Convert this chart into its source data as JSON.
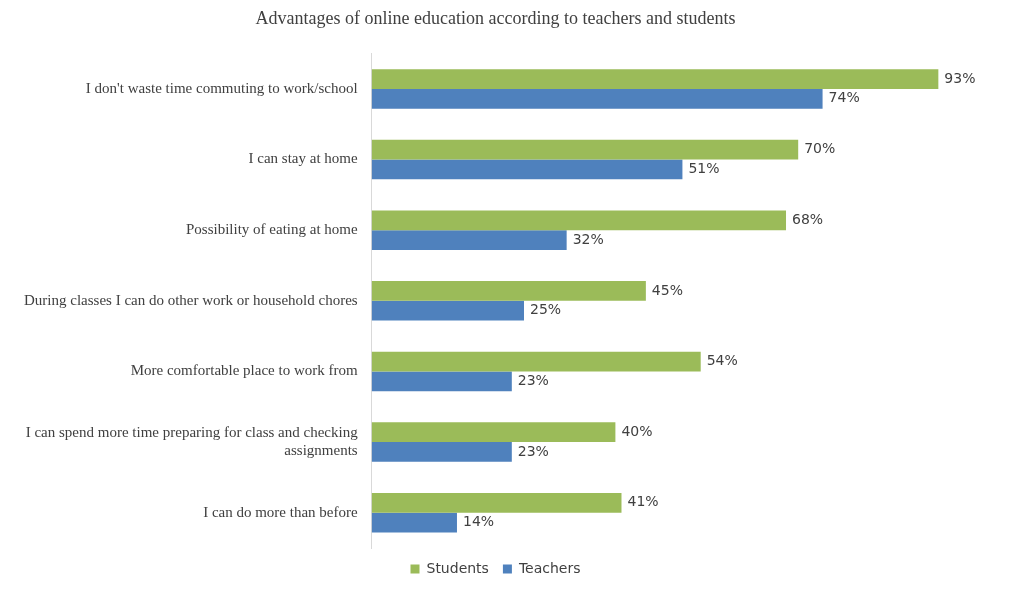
{
  "chart_data": {
    "type": "bar",
    "orientation": "horizontal",
    "title": "Advantages of online education according to teachers and students",
    "categories": [
      "I don't waste time commuting to work/school",
      "I can stay at home",
      "Possibility of eating at home",
      "During classes I can do other work or household chores",
      "More comfortable place to work from",
      "I can spend more time preparing for class and checking assignments",
      "I can do more than before"
    ],
    "series": [
      {
        "name": "Students",
        "color": "#9bbb59",
        "values": [
          93,
          70,
          68,
          45,
          54,
          40,
          41
        ],
        "value_labels": [
          "93%",
          "70%",
          "68%",
          "45%",
          "54%",
          "40%",
          "41%"
        ]
      },
      {
        "name": "Teachers",
        "color": "#4f81bd",
        "values": [
          74,
          51,
          32,
          25,
          23,
          23,
          14
        ],
        "value_labels": [
          "74%",
          "51%",
          "32%",
          "25%",
          "23%",
          "23%",
          "14%"
        ]
      }
    ],
    "grid": false,
    "legend": "bottom",
    "tick_labels": "y"
  }
}
